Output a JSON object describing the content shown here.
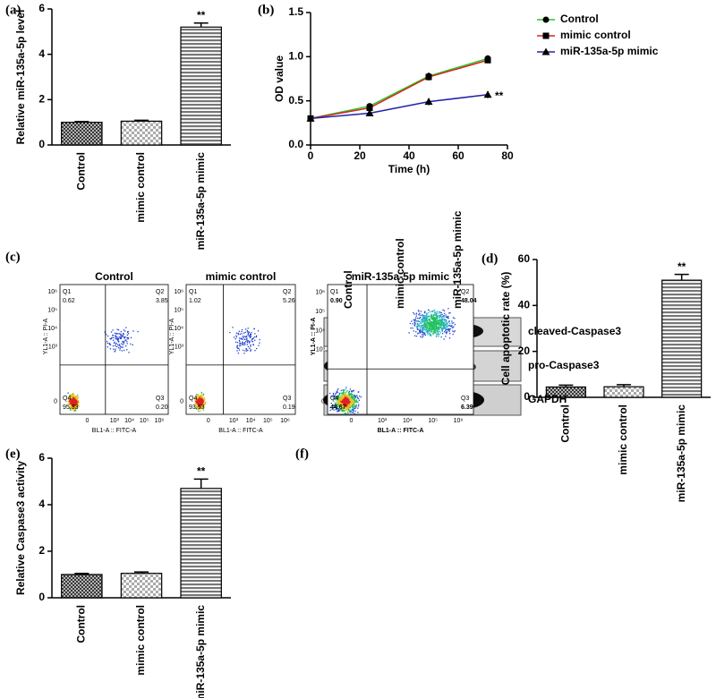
{
  "chart_data": [
    {
      "type": "bar",
      "panel": "(a)",
      "ylabel": "Relative miR-135a-5p level",
      "categories": [
        "Control",
        "mimic control",
        "miR-135a-5p mimic"
      ],
      "values": [
        1.0,
        1.05,
        5.2
      ],
      "errors": [
        0.03,
        0.04,
        0.18
      ],
      "colors": [
        "#333333",
        "#aaaaaa",
        "#777777"
      ],
      "patterns": [
        "crosshatch",
        "checker",
        "stripes"
      ],
      "ylim": [
        0,
        6
      ],
      "yticks": [
        0,
        2,
        4,
        6
      ],
      "annotation": "**"
    },
    {
      "type": "line",
      "panel": "(b)",
      "xlabel": "Time (h)",
      "ylabel": "OD value",
      "x": [
        0,
        24,
        48,
        72
      ],
      "series": [
        {
          "name": "Control",
          "color": "#22cc22",
          "marker": "circle",
          "values": [
            0.3,
            0.44,
            0.78,
            0.98
          ],
          "errors": [
            0.02,
            0.03,
            0.04,
            0.03
          ]
        },
        {
          "name": "mimic control",
          "color": "#dd2222",
          "marker": "square",
          "values": [
            0.3,
            0.42,
            0.77,
            0.96
          ],
          "errors": [
            0.02,
            0.03,
            0.04,
            0.03
          ]
        },
        {
          "name": "miR-135a-5p mimic",
          "color": "#2222aa",
          "marker": "triangle",
          "values": [
            0.3,
            0.36,
            0.49,
            0.57
          ],
          "errors": [
            0.02,
            0.02,
            0.04,
            0.04
          ]
        }
      ],
      "xlim": [
        0,
        80
      ],
      "xticks": [
        0,
        20,
        40,
        60,
        80
      ],
      "ylim": [
        0,
        1.5
      ],
      "yticks": [
        {
          "value": 0,
          "label": "0.0"
        },
        0.5,
        {
          "value": 1,
          "label": "1.0"
        },
        1.5
      ],
      "annotation": "**"
    },
    {
      "type": "bar",
      "panel": "(d)",
      "ylabel": "Cell apoptotic rate (%)",
      "categories": [
        "Control",
        "mimic control",
        "miR-135a-5p mimic"
      ],
      "values": [
        4.5,
        4.6,
        51
      ],
      "errors": [
        0.8,
        0.9,
        2.5
      ],
      "colors": [
        "#333333",
        "#aaaaaa",
        "#777777"
      ],
      "patterns": [
        "crosshatch",
        "checker",
        "stripes"
      ],
      "ylim": [
        0,
        60
      ],
      "yticks": [
        0,
        20,
        40,
        60
      ],
      "annotation": "**"
    },
    {
      "type": "bar",
      "panel": "(e)",
      "ylabel": "Relative Caspase3 activity",
      "categories": [
        "Control",
        "mimic control",
        "miR-135a-5p mimic"
      ],
      "values": [
        1.0,
        1.05,
        4.7
      ],
      "errors": [
        0.05,
        0.06,
        0.4
      ],
      "colors": [
        "#333333",
        "#aaaaaa",
        "#777777"
      ],
      "patterns": [
        "crosshatch",
        "checker",
        "stripes"
      ],
      "ylim": [
        0,
        6
      ],
      "yticks": [
        0,
        2,
        4,
        6
      ],
      "annotation": "**"
    }
  ],
  "flow": {
    "panel": "(c)",
    "xlabel": "BL1-A :: FITC-A",
    "ylabel": "YL1-A :: PI-A",
    "ticks": [
      "0",
      "10³",
      "10⁴",
      "10⁵",
      "10⁶"
    ],
    "plots": [
      {
        "title": "Control",
        "quadrants": [
          {
            "name": "Q1",
            "value": "0.62"
          },
          {
            "name": "Q2",
            "value": "3.85"
          },
          {
            "name": "Q3",
            "value": "0.20"
          },
          {
            "name": "Q4",
            "value": "95.33"
          }
        ]
      },
      {
        "title": "mimic control",
        "quadrants": [
          {
            "name": "Q1",
            "value": "1.02"
          },
          {
            "name": "Q2",
            "value": "5.26"
          },
          {
            "name": "Q3",
            "value": "0.19"
          },
          {
            "name": "Q4",
            "value": "93.53"
          }
        ]
      },
      {
        "title": "miR-135a-5p mimic",
        "quadrants": [
          {
            "name": "Q1",
            "value": "0.90"
          },
          {
            "name": "Q2",
            "value": "48.04"
          },
          {
            "name": "Q3",
            "value": "6.39"
          },
          {
            "name": "Q4",
            "value": "44.67"
          }
        ]
      }
    ]
  },
  "blot": {
    "panel": "(f)",
    "lanes": [
      "Control",
      "mimic control",
      "miR-135a-5p mimic"
    ],
    "bands": [
      "cleaved-Caspase3",
      "pro-Caspase3",
      "GAPDH"
    ]
  }
}
